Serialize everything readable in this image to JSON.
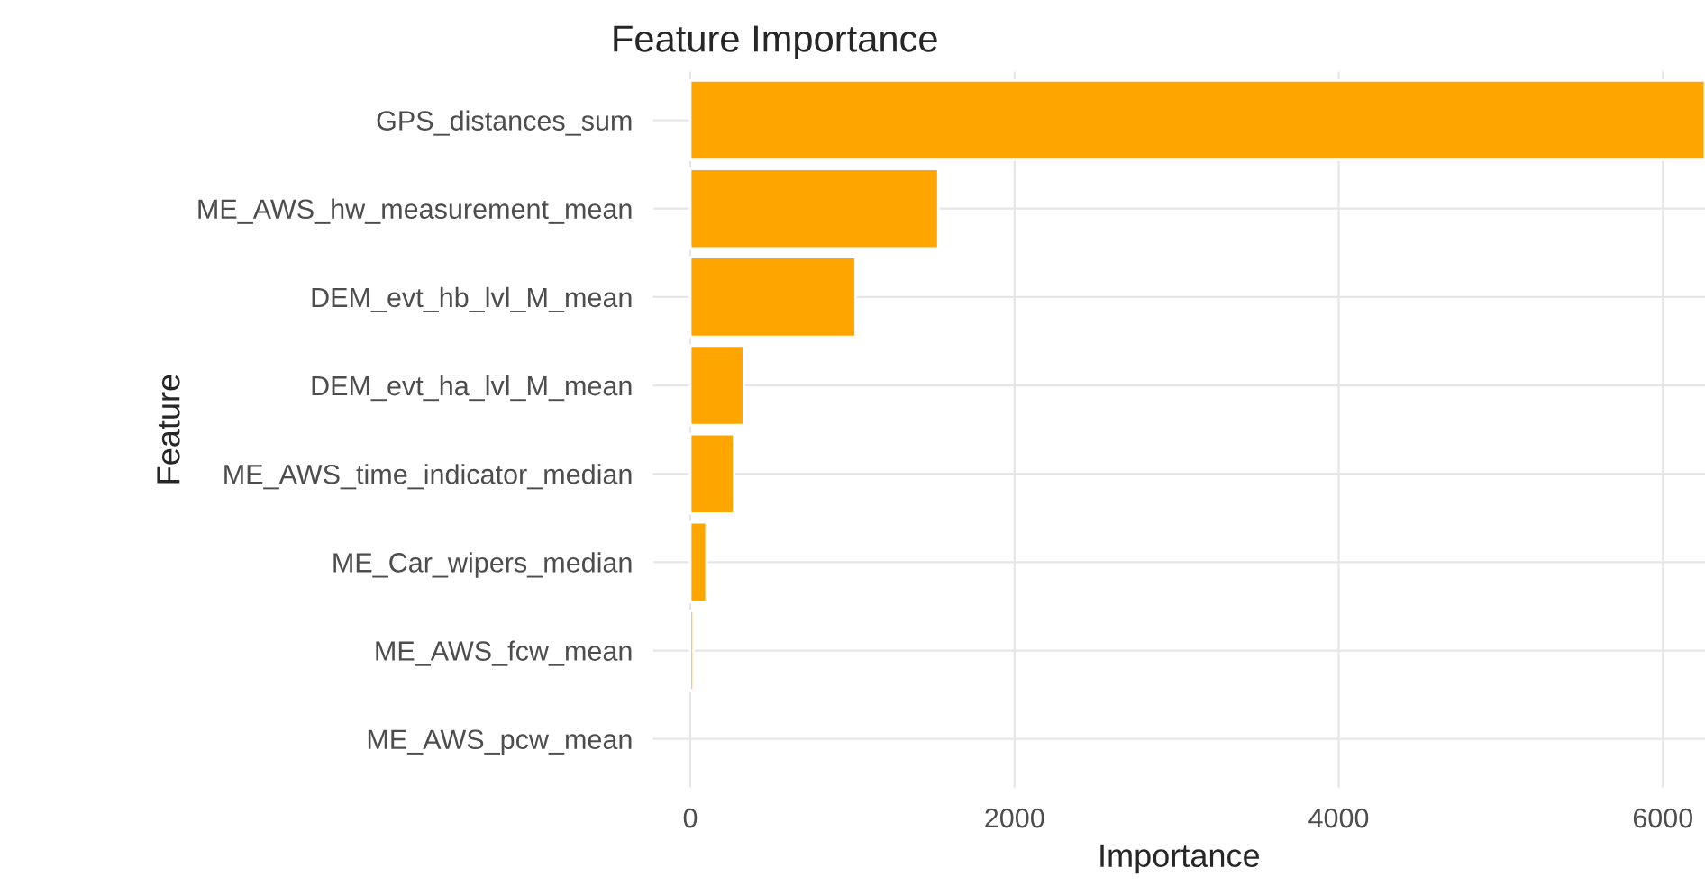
{
  "chart_data": {
    "type": "bar",
    "orientation": "horizontal",
    "title": "Feature Importance",
    "xlabel": "Importance",
    "ylabel": "Feature",
    "categories": [
      "GPS_distances_sum",
      "ME_AWS_hw_measurement_mean",
      "DEM_evt_hb_lvl_M_mean",
      "DEM_evt_ha_lvl_M_mean",
      "ME_AWS_time_indicator_median",
      "ME_Car_wipers_median",
      "ME_AWS_fcw_mean",
      "ME_AWS_pcw_mean"
    ],
    "values": [
      6260,
      1530,
      1020,
      330,
      270,
      100,
      20,
      null
    ],
    "color": "#ffa500",
    "xlim": [
      -230,
      6260
    ],
    "xticks": [
      0,
      2000,
      4000,
      6000
    ],
    "grid": true
  }
}
